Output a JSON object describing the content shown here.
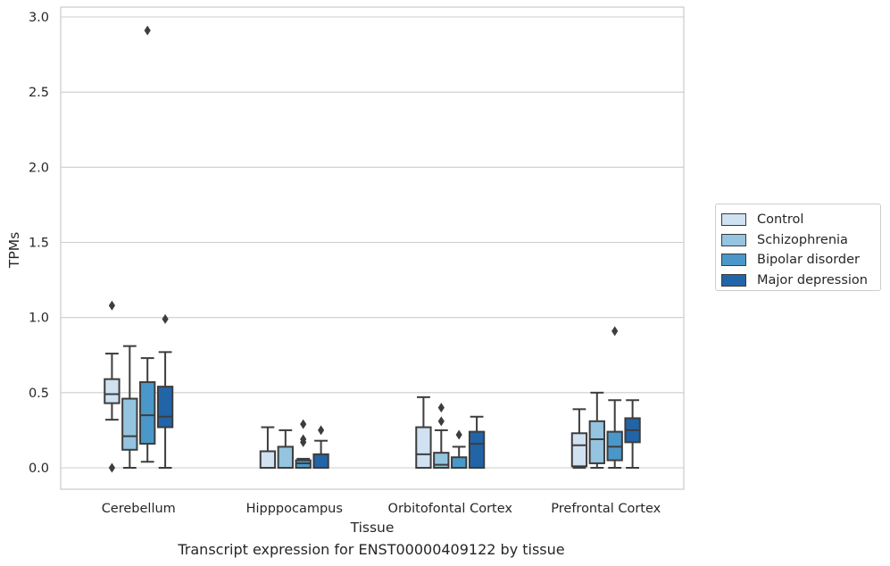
{
  "chart_data": {
    "type": "box",
    "xlabel": "Tissue",
    "ylabel": "TPMs",
    "ylim": [
      -0.14,
      3.06
    ],
    "yticks": [
      "0.0",
      "0.5",
      "1.0",
      "1.5",
      "2.0",
      "2.5",
      "3.0"
    ],
    "grid": "horizontal",
    "legend_position": "right",
    "categories": [
      "Cerebellum",
      "Hipppocampus",
      "Orbitofontal Cortex",
      "Prefrontal Cortex"
    ],
    "series": [
      {
        "name": "Control",
        "color": "#d0e1f2",
        "boxes": [
          {
            "whislo": 0.32,
            "q1": 0.43,
            "med": 0.49,
            "q3": 0.59,
            "whishi": 0.76,
            "fliers": [
              1.08,
              0.0
            ]
          },
          {
            "whislo": 0.0,
            "q1": 0.0,
            "med": 0.0,
            "q3": 0.11,
            "whishi": 0.27,
            "fliers": []
          },
          {
            "whislo": 0.0,
            "q1": 0.0,
            "med": 0.09,
            "q3": 0.27,
            "whishi": 0.47,
            "fliers": []
          },
          {
            "whislo": 0.0,
            "q1": 0.01,
            "med": 0.15,
            "q3": 0.23,
            "whishi": 0.39,
            "fliers": []
          }
        ]
      },
      {
        "name": "Schizophrenia",
        "color": "#94c4df",
        "boxes": [
          {
            "whislo": 0.0,
            "q1": 0.12,
            "med": 0.21,
            "q3": 0.46,
            "whishi": 0.81,
            "fliers": []
          },
          {
            "whislo": 0.0,
            "q1": 0.0,
            "med": 0.0,
            "q3": 0.14,
            "whishi": 0.25,
            "fliers": []
          },
          {
            "whislo": 0.0,
            "q1": 0.0,
            "med": 0.02,
            "q3": 0.1,
            "whishi": 0.25,
            "fliers": [
              0.31,
              0.4
            ]
          },
          {
            "whislo": 0.0,
            "q1": 0.03,
            "med": 0.19,
            "q3": 0.31,
            "whishi": 0.5,
            "fliers": []
          }
        ]
      },
      {
        "name": "Bipolar disorder",
        "color": "#4a98c9",
        "boxes": [
          {
            "whislo": 0.04,
            "q1": 0.16,
            "med": 0.35,
            "q3": 0.57,
            "whishi": 0.73,
            "fliers": [
              2.91
            ]
          },
          {
            "whislo": 0.0,
            "q1": 0.0,
            "med": 0.03,
            "q3": 0.05,
            "whishi": 0.06,
            "fliers": [
              0.17,
              0.19,
              0.29
            ]
          },
          {
            "whislo": 0.0,
            "q1": 0.0,
            "med": 0.0,
            "q3": 0.07,
            "whishi": 0.14,
            "fliers": [
              0.22
            ]
          },
          {
            "whislo": 0.0,
            "q1": 0.05,
            "med": 0.14,
            "q3": 0.24,
            "whishi": 0.45,
            "fliers": [
              0.91
            ]
          }
        ]
      },
      {
        "name": "Major depression",
        "color": "#2264a8",
        "boxes": [
          {
            "whislo": 0.0,
            "q1": 0.27,
            "med": 0.34,
            "q3": 0.54,
            "whishi": 0.77,
            "fliers": [
              0.99
            ]
          },
          {
            "whislo": 0.0,
            "q1": 0.0,
            "med": 0.0,
            "q3": 0.09,
            "whishi": 0.18,
            "fliers": [
              0.25
            ]
          },
          {
            "whislo": 0.0,
            "q1": 0.0,
            "med": 0.16,
            "q3": 0.24,
            "whishi": 0.34,
            "fliers": []
          },
          {
            "whislo": 0.0,
            "q1": 0.17,
            "med": 0.25,
            "q3": 0.33,
            "whishi": 0.45,
            "fliers": []
          }
        ]
      }
    ]
  },
  "caption": "Transcript expression for ENST00000409122 by tissue"
}
